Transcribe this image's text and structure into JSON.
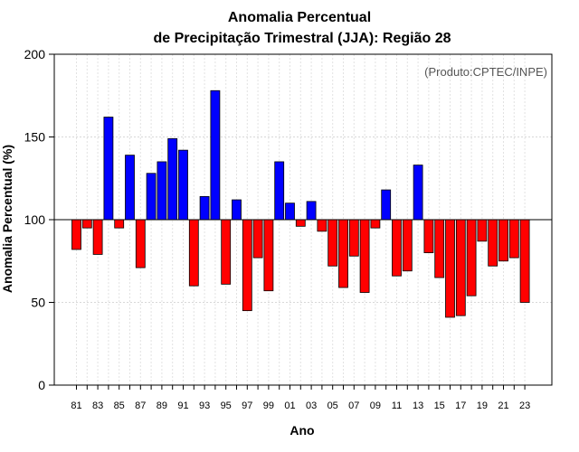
{
  "chart_data": {
    "type": "bar",
    "title_line1": "Anomalia Percentual",
    "title_line2": "de Precipitação Trimestral (JJA): Região 28",
    "xlabel": "Ano",
    "ylabel": "Anomalia Percentual (%)",
    "credit": "(Produto:CPTEC/INPE)",
    "baseline": 100,
    "ylim": [
      0,
      200
    ],
    "yticks": [
      0,
      50,
      100,
      150,
      200
    ],
    "grid": true,
    "colors": {
      "above": "#0000ff",
      "below": "#ff0000",
      "outline": "#000000"
    },
    "categories": [
      "81",
      "82",
      "83",
      "84",
      "85",
      "86",
      "87",
      "88",
      "89",
      "90",
      "91",
      "92",
      "93",
      "94",
      "95",
      "96",
      "97",
      "98",
      "99",
      "00",
      "01",
      "02",
      "03",
      "04",
      "05",
      "06",
      "07",
      "08",
      "09",
      "10",
      "11",
      "12",
      "13",
      "14",
      "15",
      "16",
      "17",
      "18",
      "19",
      "20",
      "21",
      "22",
      "23"
    ],
    "xtick_labels": [
      "81",
      "83",
      "85",
      "87",
      "89",
      "91",
      "93",
      "95",
      "97",
      "99",
      "01",
      "03",
      "05",
      "07",
      "09",
      "11",
      "13",
      "15",
      "17",
      "19",
      "21",
      "23"
    ],
    "values": [
      82,
      95,
      79,
      162,
      95,
      139,
      71,
      128,
      135,
      149,
      142,
      60,
      114,
      178,
      61,
      112,
      45,
      77,
      57,
      135,
      110,
      96,
      111,
      93,
      72,
      59,
      78,
      56,
      95,
      118,
      66,
      69,
      133,
      80,
      65,
      41,
      42,
      54,
      87,
      72,
      75,
      77,
      50
    ]
  }
}
